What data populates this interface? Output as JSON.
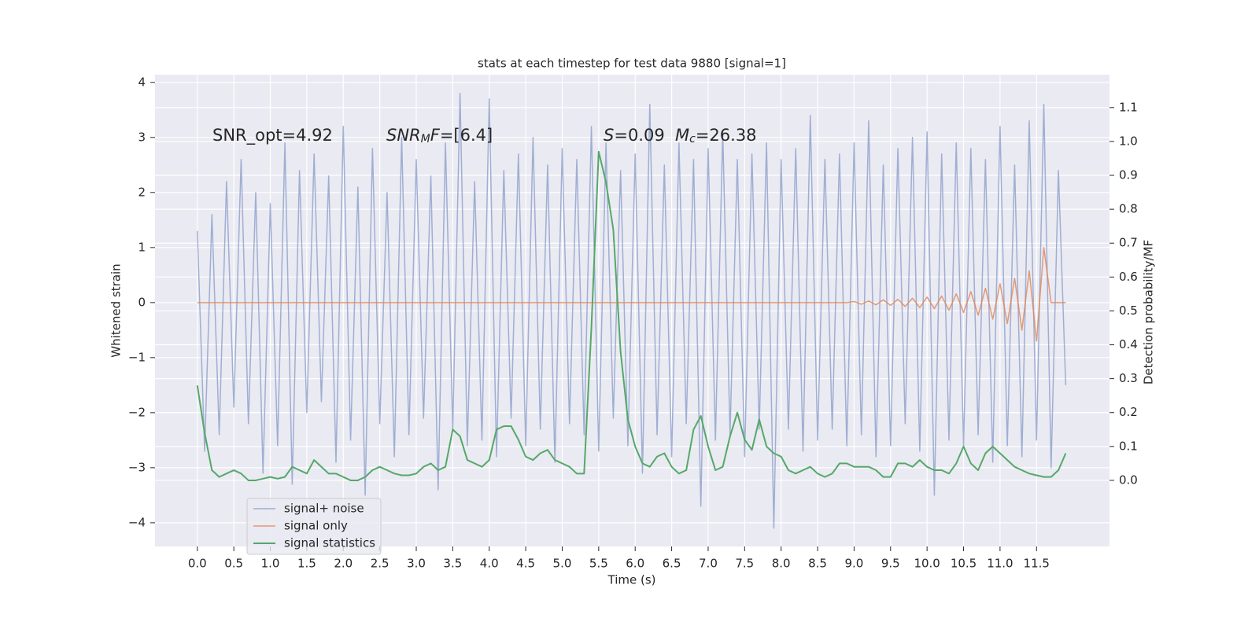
{
  "chart_data": {
    "type": "line",
    "title": "stats at each timestep for test data 9880 [signal=1]",
    "xlabel": "Time (s)",
    "ylabel": "Whitened strain",
    "y2label": "Detection probability/MF",
    "x": [
      0.0,
      0.1,
      0.2,
      0.3,
      0.4,
      0.5,
      0.6,
      0.7,
      0.8,
      0.9,
      1.0,
      1.1,
      1.2,
      1.3,
      1.4,
      1.5,
      1.6,
      1.7,
      1.8,
      1.9,
      2.0,
      2.1,
      2.2,
      2.3,
      2.4,
      2.5,
      2.6,
      2.7,
      2.8,
      2.9,
      3.0,
      3.1,
      3.2,
      3.3,
      3.4,
      3.5,
      3.6,
      3.7,
      3.8,
      3.9,
      4.0,
      4.1,
      4.2,
      4.3,
      4.4,
      4.5,
      4.6,
      4.7,
      4.8,
      4.9,
      5.0,
      5.1,
      5.2,
      5.3,
      5.4,
      5.5,
      5.6,
      5.7,
      5.8,
      5.9,
      6.0,
      6.1,
      6.2,
      6.3,
      6.4,
      6.5,
      6.6,
      6.7,
      6.8,
      6.9,
      7.0,
      7.1,
      7.2,
      7.3,
      7.4,
      7.5,
      7.6,
      7.7,
      7.8,
      7.9,
      8.0,
      8.1,
      8.2,
      8.3,
      8.4,
      8.5,
      8.6,
      8.7,
      8.8,
      8.9,
      9.0,
      9.1,
      9.2,
      9.3,
      9.4,
      9.5,
      9.6,
      9.7,
      9.8,
      9.9,
      10.0,
      10.1,
      10.2,
      10.3,
      10.4,
      10.5,
      10.6,
      10.7,
      10.8,
      10.9,
      11.0,
      11.1,
      11.2,
      11.3,
      11.4,
      11.5,
      11.6,
      11.7,
      11.8,
      11.9
    ],
    "series": [
      {
        "name": "signal+ noise",
        "color": "#8c9fcb",
        "values": [
          1.3,
          -2.7,
          1.6,
          -2.4,
          2.2,
          -1.9,
          2.6,
          -2.2,
          2.0,
          -3.1,
          1.8,
          -2.6,
          2.9,
          -3.3,
          2.4,
          -2.0,
          2.7,
          -1.8,
          2.3,
          -2.9,
          3.2,
          -2.5,
          2.1,
          -3.5,
          2.8,
          -2.2,
          2.0,
          -2.8,
          3.0,
          -2.4,
          2.6,
          -2.1,
          2.3,
          -3.4,
          2.9,
          -2.3,
          3.8,
          -2.6,
          2.2,
          -2.5,
          3.7,
          -2.8,
          2.4,
          -2.1,
          2.7,
          -2.6,
          3.0,
          -2.3,
          2.5,
          -2.9,
          2.8,
          -2.2,
          2.6,
          -2.4,
          3.2,
          -2.7,
          2.9,
          -2.1,
          2.4,
          -2.6,
          2.7,
          -3.1,
          3.6,
          -2.4,
          2.5,
          -2.8,
          2.9,
          -2.2,
          2.6,
          -3.7,
          2.8,
          -2.5,
          3.1,
          -2.4,
          2.6,
          -2.8,
          2.7,
          -2.3,
          2.9,
          -4.1,
          2.6,
          -2.3,
          2.8,
          -2.7,
          3.4,
          -2.5,
          2.6,
          -2.3,
          2.7,
          -2.6,
          2.9,
          -2.4,
          3.3,
          -2.8,
          2.5,
          -2.6,
          2.8,
          -2.2,
          3.0,
          -2.7,
          3.1,
          -3.5,
          2.7,
          -2.5,
          2.9,
          -2.6,
          2.8,
          -2.4,
          2.6,
          -2.9,
          3.2,
          -2.6,
          2.5,
          -2.8,
          3.3,
          -2.5,
          3.6,
          -3.0,
          2.4,
          -1.5
        ]
      },
      {
        "name": "signal only",
        "color": "#dd8452",
        "values": [
          0,
          0,
          0,
          0,
          0,
          0,
          0,
          0,
          0,
          0,
          0,
          0,
          0,
          0,
          0,
          0,
          0,
          0,
          0,
          0,
          0,
          0,
          0,
          0,
          0,
          0,
          0,
          0,
          0,
          0,
          0,
          0,
          0,
          0,
          0,
          0,
          0,
          0,
          0,
          0,
          0,
          0,
          0,
          0,
          0,
          0,
          0,
          0,
          0,
          0,
          0,
          0,
          0,
          0,
          0,
          0,
          0,
          0,
          0,
          0,
          0,
          0,
          0,
          0,
          0,
          0,
          0,
          0,
          0,
          0,
          0,
          0,
          0,
          0,
          0,
          0,
          0,
          0,
          0,
          0,
          0,
          0,
          0,
          0,
          0,
          0,
          0,
          0,
          0,
          0,
          0.02,
          -0.03,
          0.03,
          -0.04,
          0.05,
          -0.05,
          0.06,
          -0.07,
          0.08,
          -0.09,
          0.1,
          -0.11,
          0.12,
          -0.14,
          0.16,
          -0.18,
          0.2,
          -0.23,
          0.26,
          -0.3,
          0.34,
          -0.38,
          0.44,
          -0.5,
          0.58,
          -0.7,
          1.0,
          0,
          0,
          0
        ]
      },
      {
        "name": "signal statistics",
        "color": "#55a868",
        "axis": "y2",
        "values": [
          0.28,
          0.14,
          0.03,
          0.01,
          0.02,
          0.03,
          0.02,
          0.0,
          0.0,
          0.005,
          0.01,
          0.005,
          0.01,
          0.04,
          0.03,
          0.02,
          0.06,
          0.04,
          0.02,
          0.02,
          0.01,
          0.0,
          0.0,
          0.01,
          0.03,
          0.04,
          0.03,
          0.02,
          0.015,
          0.015,
          0.02,
          0.04,
          0.05,
          0.03,
          0.04,
          0.15,
          0.13,
          0.06,
          0.05,
          0.04,
          0.06,
          0.15,
          0.16,
          0.16,
          0.12,
          0.07,
          0.06,
          0.08,
          0.09,
          0.06,
          0.05,
          0.04,
          0.02,
          0.02,
          0.45,
          0.97,
          0.88,
          0.74,
          0.38,
          0.18,
          0.1,
          0.05,
          0.04,
          0.07,
          0.08,
          0.04,
          0.02,
          0.03,
          0.15,
          0.19,
          0.1,
          0.03,
          0.04,
          0.13,
          0.2,
          0.12,
          0.09,
          0.18,
          0.1,
          0.08,
          0.07,
          0.03,
          0.02,
          0.03,
          0.04,
          0.02,
          0.01,
          0.02,
          0.05,
          0.05,
          0.04,
          0.04,
          0.04,
          0.03,
          0.01,
          0.01,
          0.05,
          0.05,
          0.04,
          0.06,
          0.04,
          0.03,
          0.03,
          0.02,
          0.05,
          0.1,
          0.05,
          0.03,
          0.08,
          0.1,
          0.08,
          0.06,
          0.04,
          0.03,
          0.02,
          0.015,
          0.01,
          0.01,
          0.03,
          0.08
        ]
      }
    ],
    "xlim": [
      -0.58,
      12.5
    ],
    "xticks": [
      {
        "value": 0,
        "label": "0.0"
      },
      0.5,
      {
        "value": 1,
        "label": "1.0"
      },
      1.5,
      {
        "value": 2,
        "label": "2.0"
      },
      2.5,
      {
        "value": 3,
        "label": "3.0"
      },
      3.5,
      {
        "value": 4,
        "label": "4.0"
      },
      4.5,
      {
        "value": 5,
        "label": "5.0"
      },
      5.5,
      {
        "value": 6,
        "label": "6.0"
      },
      6.5,
      {
        "value": 7,
        "label": "7.0"
      },
      7.5,
      {
        "value": 8,
        "label": "8.0"
      },
      8.5,
      {
        "value": 9,
        "label": "9.0"
      },
      9.5,
      {
        "value": 10,
        "label": "10.0"
      },
      10.5,
      {
        "value": 11,
        "label": "11.0"
      },
      11.5
    ],
    "ylim": [
      -4.43,
      4.14
    ],
    "yticks": [
      {
        "value": -4,
        "label": "−4"
      },
      {
        "value": -3,
        "label": "−3"
      },
      {
        "value": -2,
        "label": "−2"
      },
      {
        "value": -1,
        "label": "−1"
      },
      0,
      1,
      2,
      3,
      4
    ],
    "y2lim": [
      -0.195,
      1.197
    ],
    "y2ticks": [
      {
        "value": 0,
        "label": "0.0"
      },
      0.1,
      0.2,
      0.3,
      0.4,
      0.5,
      0.6,
      0.7,
      0.8,
      0.9,
      {
        "value": 1,
        "label": "1.0"
      },
      1.1
    ],
    "grid": true,
    "legend": "lower left",
    "annotations": [
      {
        "parts": [
          {
            "text": "SNR_opt=4.92"
          }
        ]
      },
      {
        "parts": [
          {
            "text": "SNR",
            "style": "italic"
          },
          {
            "text": "M",
            "style": "italic-sub"
          },
          {
            "text": "F",
            "style": "italic"
          },
          {
            "text": "=[6.4]"
          }
        ]
      },
      {
        "parts": [
          {
            "text": "S",
            "style": "italic"
          },
          {
            "text": "=0.09"
          }
        ]
      },
      {
        "parts": [
          {
            "text": "M",
            "style": "italic"
          },
          {
            "text": "c",
            "style": "italic-sub"
          },
          {
            "text": "=26.38"
          }
        ]
      }
    ]
  }
}
